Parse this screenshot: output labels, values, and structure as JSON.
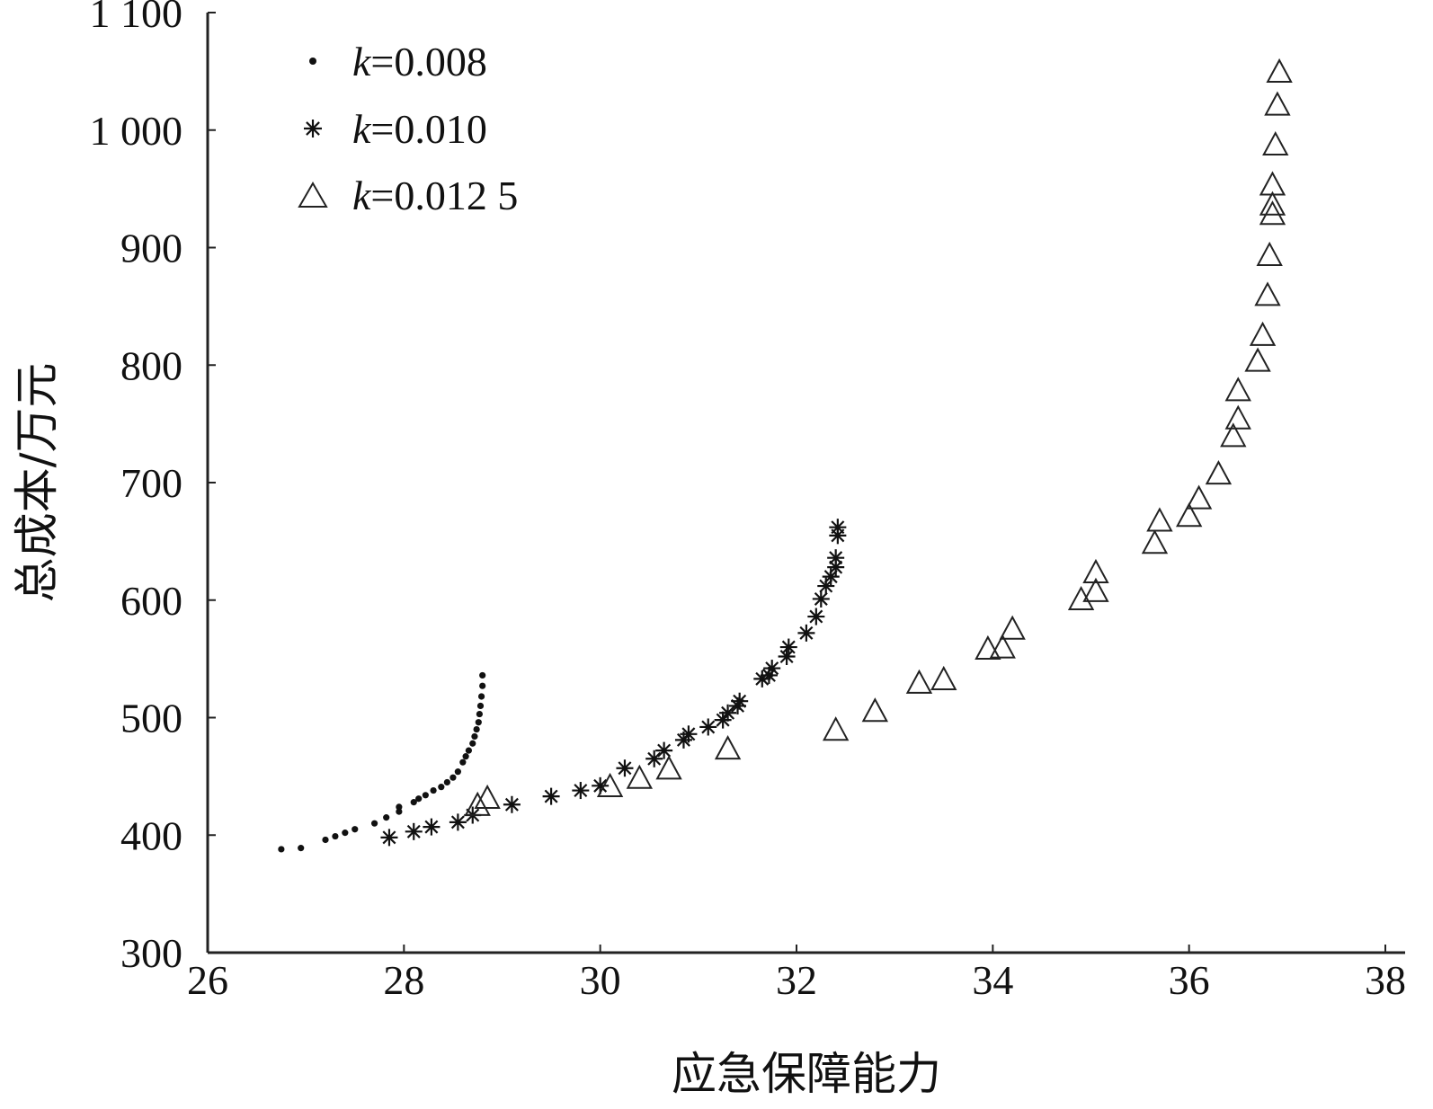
{
  "chart_data": {
    "type": "scatter",
    "xlabel": "应急保障能力",
    "ylabel": "总成本/万元",
    "xlim": [
      26,
      38
    ],
    "ylim": [
      300,
      1100
    ],
    "x_ticks": [
      {
        "value": 26,
        "label": "26"
      },
      {
        "value": 28,
        "label": "28"
      },
      {
        "value": 30,
        "label": "30"
      },
      {
        "value": 32,
        "label": "32"
      },
      {
        "value": 34,
        "label": "34"
      },
      {
        "value": 36,
        "label": "36"
      },
      {
        "value": 38,
        "label": "38"
      }
    ],
    "y_ticks": [
      {
        "value": 300,
        "label": "300"
      },
      {
        "value": 400,
        "label": "400"
      },
      {
        "value": 500,
        "label": "500"
      },
      {
        "value": 600,
        "label": "600"
      },
      {
        "value": 700,
        "label": "700"
      },
      {
        "value": 800,
        "label": "800"
      },
      {
        "value": 900,
        "label": "900"
      },
      {
        "value": 1000,
        "label": "1 000"
      },
      {
        "value": 1100,
        "label": "1 100"
      }
    ],
    "grid": false,
    "legend_position": "top-left",
    "series": [
      {
        "name": "k=0.008",
        "legend_k": "k",
        "legend_rest": "=0.008",
        "marker": "dot",
        "points": [
          [
            26.75,
            388
          ],
          [
            26.95,
            389
          ],
          [
            27.2,
            396
          ],
          [
            27.3,
            399
          ],
          [
            27.4,
            402
          ],
          [
            27.5,
            405
          ],
          [
            27.7,
            410
          ],
          [
            27.82,
            415
          ],
          [
            27.95,
            420
          ],
          [
            27.95,
            424
          ],
          [
            28.1,
            428
          ],
          [
            28.15,
            431
          ],
          [
            28.22,
            434
          ],
          [
            28.3,
            438
          ],
          [
            28.38,
            441
          ],
          [
            28.44,
            445
          ],
          [
            28.5,
            449
          ],
          [
            28.55,
            454
          ],
          [
            28.6,
            462
          ],
          [
            28.63,
            467
          ],
          [
            28.66,
            472
          ],
          [
            28.7,
            478
          ],
          [
            28.72,
            484
          ],
          [
            28.74,
            490
          ],
          [
            28.76,
            496
          ],
          [
            28.77,
            503
          ],
          [
            28.78,
            510
          ],
          [
            28.79,
            518
          ],
          [
            28.8,
            527
          ],
          [
            28.8,
            536
          ]
        ]
      },
      {
        "name": "k=0.010",
        "legend_k": "k",
        "legend_rest": "=0.010",
        "marker": "star",
        "points": [
          [
            27.85,
            398
          ],
          [
            28.1,
            403
          ],
          [
            28.28,
            407
          ],
          [
            28.55,
            411
          ],
          [
            28.7,
            417
          ],
          [
            29.1,
            426
          ],
          [
            29.5,
            433
          ],
          [
            29.8,
            438
          ],
          [
            30.0,
            442
          ],
          [
            30.25,
            457
          ],
          [
            30.55,
            465
          ],
          [
            30.65,
            472
          ],
          [
            30.85,
            481
          ],
          [
            30.9,
            486
          ],
          [
            31.1,
            492
          ],
          [
            31.25,
            498
          ],
          [
            31.3,
            504
          ],
          [
            31.4,
            510
          ],
          [
            31.42,
            514
          ],
          [
            31.65,
            533
          ],
          [
            31.72,
            536
          ],
          [
            31.75,
            542
          ],
          [
            31.9,
            552
          ],
          [
            31.92,
            560
          ],
          [
            32.1,
            572
          ],
          [
            32.2,
            586
          ],
          [
            32.25,
            601
          ],
          [
            32.3,
            612
          ],
          [
            32.35,
            620
          ],
          [
            32.4,
            628
          ],
          [
            32.4,
            636
          ],
          [
            32.42,
            655
          ],
          [
            32.42,
            662
          ]
        ]
      },
      {
        "name": "k=0.012 5",
        "legend_k": "k",
        "legend_rest": "=0.012 5",
        "marker": "triangle",
        "points": [
          [
            28.75,
            424
          ],
          [
            28.85,
            430
          ],
          [
            30.1,
            440
          ],
          [
            30.4,
            447
          ],
          [
            30.7,
            455
          ],
          [
            31.3,
            472
          ],
          [
            32.4,
            488
          ],
          [
            32.8,
            504
          ],
          [
            33.25,
            528
          ],
          [
            33.5,
            531
          ],
          [
            33.95,
            557
          ],
          [
            34.1,
            558
          ],
          [
            34.2,
            574
          ],
          [
            34.9,
            599
          ],
          [
            35.05,
            606
          ],
          [
            35.05,
            622
          ],
          [
            35.65,
            647
          ],
          [
            35.7,
            666
          ],
          [
            36.0,
            670
          ],
          [
            36.1,
            685
          ],
          [
            36.3,
            706
          ],
          [
            36.45,
            738
          ],
          [
            36.5,
            753
          ],
          [
            36.5,
            777
          ],
          [
            36.7,
            802
          ],
          [
            36.75,
            824
          ],
          [
            36.8,
            858
          ],
          [
            36.82,
            892
          ],
          [
            36.85,
            927
          ],
          [
            36.85,
            935
          ],
          [
            36.85,
            952
          ],
          [
            36.88,
            986
          ],
          [
            36.9,
            1020
          ],
          [
            36.92,
            1048
          ]
        ]
      }
    ]
  }
}
